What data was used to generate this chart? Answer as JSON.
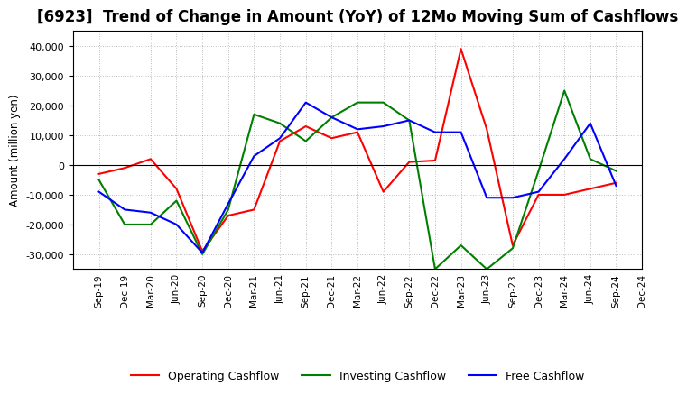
{
  "title": "[6923]  Trend of Change in Amount (YoY) of 12Mo Moving Sum of Cashflows",
  "ylabel": "Amount (million yen)",
  "x_labels": [
    "Sep-19",
    "Dec-19",
    "Mar-20",
    "Jun-20",
    "Sep-20",
    "Dec-20",
    "Mar-21",
    "Jun-21",
    "Sep-21",
    "Dec-21",
    "Mar-22",
    "Jun-22",
    "Sep-22",
    "Dec-22",
    "Mar-23",
    "Jun-23",
    "Sep-23",
    "Dec-23",
    "Mar-24",
    "Jun-24",
    "Sep-24",
    "Dec-24"
  ],
  "operating_cashflow": [
    -3000,
    -1000,
    2000,
    -8000,
    -29000,
    -17000,
    -15000,
    8000,
    13000,
    9000,
    11000,
    -9000,
    1000,
    1500,
    39000,
    12000,
    -27000,
    -10000,
    -10000,
    -8000,
    -6000,
    null
  ],
  "investing_cashflow": [
    -5000,
    -20000,
    -20000,
    -12000,
    -30000,
    -15000,
    17000,
    14000,
    8000,
    16000,
    21000,
    21000,
    15000,
    -35000,
    -27000,
    -35000,
    -28000,
    -2000,
    25000,
    2000,
    -2000,
    null
  ],
  "free_cashflow": [
    -9000,
    -15000,
    -16000,
    -20000,
    -29500,
    -13000,
    3000,
    9000,
    21000,
    16000,
    12000,
    13000,
    15000,
    11000,
    11000,
    -11000,
    -11000,
    -9000,
    2000,
    14000,
    -7000,
    null
  ],
  "operating_color": "#ff0000",
  "investing_color": "#008000",
  "free_color": "#0000ff",
  "ylim": [
    -35000,
    45000
  ],
  "yticks": [
    -30000,
    -20000,
    -10000,
    0,
    10000,
    20000,
    30000,
    40000
  ],
  "background_color": "#ffffff",
  "plot_bg_color": "#ffffff",
  "grid_color": "#aaaaaa",
  "title_fontsize": 12,
  "legend_labels": [
    "Operating Cashflow",
    "Investing Cashflow",
    "Free Cashflow"
  ]
}
